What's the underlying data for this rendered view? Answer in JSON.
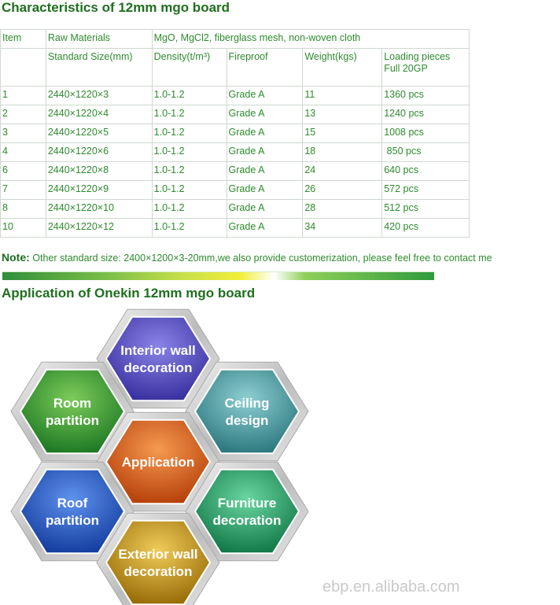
{
  "title": "Characteristics of 12mm mgo board",
  "table": {
    "row1": [
      "Item",
      "Raw Materials",
      "MgO, MgCl2, fiberglass mesh, non-woven cloth"
    ],
    "row2": [
      "",
      "Standard Size(mm)",
      "Density(t/m³)",
      "Fireproof",
      "Weight(kgs)",
      "Loading pieces Full 20GP"
    ],
    "rows": [
      [
        "1",
        "2440×1220×3",
        "1.0-1.2",
        "Grade A",
        "11",
        "1360 pcs"
      ],
      [
        "2",
        "2440×1220×4",
        "1.0-1.2",
        "Grade A",
        "13",
        "1240 pcs"
      ],
      [
        "3",
        "2440×1220×5",
        "1.0-1.2",
        "Grade A",
        "15",
        "1008 pcs"
      ],
      [
        "4",
        "2440×1220×6",
        "1.0-1.2",
        "Grade A",
        "18",
        " 850 pcs"
      ],
      [
        "6",
        "2440×1220×8",
        "1.0-1.2",
        "Grade A",
        "24",
        "640 pcs"
      ],
      [
        "7",
        "2440×1220×9",
        "1.0-1.2",
        "Grade A",
        "26",
        "572 pcs"
      ],
      [
        "8",
        "2440×1220×10",
        "1.0-1.2",
        "Grade A",
        "28",
        "512 pcs"
      ],
      [
        "10",
        "2440×1220×12",
        "1.0-1.2",
        "Grade A",
        "34",
        "420 pcs"
      ]
    ]
  },
  "note": {
    "label": "Note:",
    "text": " Other standard size: 2400×1200×3-20mm,we also provide customerization, please feel free to contact me"
  },
  "app_title": "Application of Onekin 12mm mgo board",
  "hexes": {
    "top": [
      "Interior wall",
      "decoration"
    ],
    "left_upper": [
      "Room",
      "partition"
    ],
    "right_upper": [
      "Ceiling",
      "design"
    ],
    "center": [
      "Application"
    ],
    "left_lower": [
      "Roof",
      "partition"
    ],
    "right_lower": [
      "Furniture",
      "decoration"
    ],
    "bottom": [
      "Exterior wall",
      "decoration"
    ]
  },
  "colors": {
    "top": "#5a52c4",
    "left_upper": "#3e9b3a",
    "right_upper": "#4f9ea3",
    "center": "#e0651e",
    "left_lower": "#2a5fc8",
    "right_lower": "#2aa06a",
    "bottom": "#c89a1a"
  },
  "watermark": "ebp.en.alibaba.com"
}
